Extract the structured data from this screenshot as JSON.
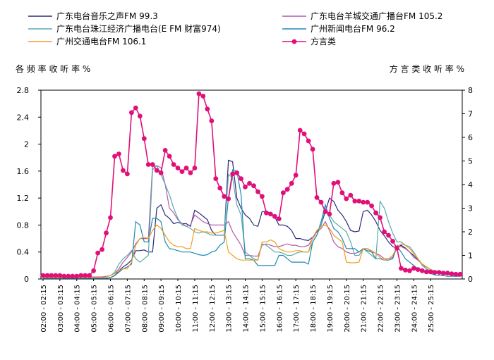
{
  "chart_data": {
    "type": "line",
    "y_left_label": "各 频 率 收 听 率 %",
    "y_right_label": "方 言 类 收 听 率 %",
    "y_left_ticks": [
      "0",
      "0.4",
      "0.8",
      "1.2",
      "1.6",
      "2",
      "2.4",
      "2.8"
    ],
    "y_right_ticks": [
      "0",
      "1",
      "2",
      "3",
      "4",
      "5",
      "6",
      "7",
      "8"
    ],
    "ylim_left": [
      0,
      2.8
    ],
    "ylim_right": [
      0,
      8
    ],
    "x_labels": [
      "02:00 - 02:15",
      "03:00 - 03:15",
      "04:00 - 04:15",
      "05:00 - 05:15",
      "06:00 - 06:15",
      "07:00 - 07:15",
      "08:00 - 08:15",
      "09:00 - 09:15",
      "10:00 - 10:15",
      "11:00 - 11:15",
      "12:00 - 12:15",
      "13:00 - 13:15",
      "14:00 - 14:15",
      "15:00 - 15:15",
      "16:00 - 16:15",
      "17:00 - 17:15",
      "18:00 - 18:15",
      "19:00 - 19:15",
      "20:00 - 20:15",
      "21:00 - 21:15",
      "22:00 - 22:15",
      "23:00 - 23:15",
      "24:00 - 24:15",
      "25:00 - 25:15"
    ],
    "grid": false,
    "legend_position": "top",
    "series": [
      {
        "name": "广东电台音乐之声FM 99.3",
        "color": "#2a2a7a",
        "axis": "left",
        "values": [
          0.01,
          0.01,
          0.01,
          0.01,
          0.01,
          0.01,
          0.01,
          0.01,
          0.01,
          0.01,
          0.01,
          0.01,
          0.01,
          0.01,
          0.01,
          0.01,
          0.02,
          0.05,
          0.12,
          0.18,
          0.22,
          0.28,
          0.42,
          0.42,
          0.43,
          0.4,
          0.4,
          1.05,
          1.1,
          0.95,
          0.9,
          0.82,
          0.84,
          0.82,
          0.82,
          0.78,
          1.02,
          0.98,
          0.93,
          0.88,
          0.72,
          0.65,
          0.65,
          0.65,
          1.76,
          1.74,
          1.2,
          1.05,
          0.95,
          0.9,
          0.8,
          0.78,
          1.0,
          1.0,
          0.98,
          0.92,
          0.8,
          0.8,
          0.78,
          0.72,
          0.6,
          0.6,
          0.58,
          0.57,
          0.62,
          0.7,
          0.8,
          1.0,
          1.2,
          1.15,
          1.02,
          0.95,
          0.85,
          0.72,
          0.7,
          0.71,
          1.0,
          1.02,
          0.95,
          0.85,
          0.72,
          0.64,
          0.55,
          0.48,
          0.46,
          0.5,
          0.46,
          0.4,
          0.35,
          0.28,
          0.22,
          0.18,
          0.14,
          0.1,
          0.08,
          0.07,
          0.07,
          0.06,
          0.05,
          0.05
        ]
      },
      {
        "name": "广东电台羊城交通广播台FM 105.2",
        "color": "#b05aab",
        "axis": "left",
        "values": [
          0.03,
          0.03,
          0.03,
          0.03,
          0.03,
          0.03,
          0.03,
          0.03,
          0.03,
          0.03,
          0.03,
          0.03,
          0.03,
          0.03,
          0.03,
          0.04,
          0.05,
          0.08,
          0.15,
          0.25,
          0.32,
          0.4,
          0.52,
          0.6,
          0.6,
          0.6,
          1.68,
          1.68,
          1.65,
          1.4,
          1.05,
          0.98,
          0.88,
          0.82,
          0.78,
          0.8,
          0.95,
          0.9,
          0.85,
          0.82,
          0.8,
          0.8,
          0.8,
          0.8,
          0.85,
          0.7,
          0.6,
          0.5,
          0.35,
          0.35,
          0.34,
          0.34,
          0.5,
          0.52,
          0.5,
          0.48,
          0.48,
          0.5,
          0.52,
          0.5,
          0.5,
          0.48,
          0.48,
          0.5,
          0.6,
          0.7,
          0.75,
          0.85,
          0.72,
          0.55,
          0.48,
          0.45,
          0.4,
          0.38,
          0.38,
          0.4,
          0.45,
          0.45,
          0.4,
          0.38,
          0.35,
          0.3,
          0.3,
          0.32,
          0.5,
          0.48,
          0.45,
          0.4,
          0.32,
          0.28,
          0.22,
          0.15,
          0.12,
          0.1,
          0.08,
          0.07,
          0.07,
          0.06,
          0.05,
          0.05
        ]
      },
      {
        "name": "广东电台珠江经济广播电台(E FM 财富974)",
        "color": "#5aaaaa",
        "axis": "left",
        "values": [
          0.02,
          0.02,
          0.02,
          0.02,
          0.02,
          0.02,
          0.02,
          0.02,
          0.02,
          0.02,
          0.02,
          0.02,
          0.02,
          0.02,
          0.02,
          0.03,
          0.05,
          0.1,
          0.22,
          0.3,
          0.35,
          0.42,
          0.3,
          0.25,
          0.3,
          0.35,
          1.62,
          1.68,
          1.55,
          1.4,
          1.25,
          1.05,
          0.9,
          0.8,
          0.78,
          0.75,
          0.7,
          0.68,
          0.7,
          0.68,
          0.65,
          0.65,
          0.65,
          0.65,
          1.55,
          1.5,
          1.1,
          0.95,
          0.4,
          0.35,
          0.3,
          0.28,
          0.52,
          0.5,
          0.45,
          0.4,
          0.4,
          0.38,
          0.35,
          0.35,
          0.38,
          0.4,
          0.4,
          0.4,
          0.55,
          0.65,
          0.8,
          1.05,
          0.95,
          0.85,
          0.8,
          0.75,
          0.7,
          0.55,
          0.35,
          0.35,
          0.45,
          0.4,
          0.35,
          0.3,
          1.15,
          1.05,
          0.85,
          0.68,
          0.55,
          0.55,
          0.5,
          0.48,
          0.4,
          0.3,
          0.2,
          0.15,
          0.12,
          0.1,
          0.08,
          0.07,
          0.07,
          0.06,
          0.05,
          0.05
        ]
      },
      {
        "name": "广州新闻电台FM 96.2",
        "color": "#1f8ab0",
        "axis": "left",
        "values": [
          0.01,
          0.01,
          0.01,
          0.01,
          0.01,
          0.01,
          0.01,
          0.01,
          0.01,
          0.01,
          0.01,
          0.01,
          0.01,
          0.01,
          0.01,
          0.01,
          0.02,
          0.05,
          0.1,
          0.15,
          0.18,
          0.22,
          0.85,
          0.8,
          0.55,
          0.55,
          0.9,
          0.9,
          0.85,
          0.55,
          0.45,
          0.44,
          0.42,
          0.4,
          0.4,
          0.4,
          0.38,
          0.36,
          0.35,
          0.36,
          0.4,
          0.42,
          0.5,
          0.55,
          1.2,
          1.62,
          1.6,
          1.25,
          0.3,
          0.3,
          0.28,
          0.2,
          0.2,
          0.2,
          0.2,
          0.2,
          0.35,
          0.35,
          0.3,
          0.25,
          0.25,
          0.25,
          0.25,
          0.22,
          0.55,
          0.65,
          0.85,
          1.1,
          0.9,
          0.75,
          0.7,
          0.6,
          0.45,
          0.45,
          0.45,
          0.4,
          0.45,
          0.42,
          0.4,
          0.3,
          0.3,
          0.28,
          0.28,
          0.3,
          0.48,
          0.4,
          0.3,
          0.25,
          0.2,
          0.15,
          0.12,
          0.1,
          0.08,
          0.06,
          0.05,
          0.05,
          0.04,
          0.04,
          0.04,
          0.04
        ]
      },
      {
        "name": "广州交通电台FM 106.1",
        "color": "#f0a020",
        "axis": "left",
        "values": [
          0.02,
          0.02,
          0.02,
          0.02,
          0.02,
          0.02,
          0.02,
          0.02,
          0.02,
          0.02,
          0.02,
          0.02,
          0.02,
          0.02,
          0.02,
          0.03,
          0.05,
          0.08,
          0.12,
          0.15,
          0.15,
          0.25,
          0.5,
          0.6,
          0.62,
          0.6,
          0.72,
          0.8,
          0.75,
          0.65,
          0.55,
          0.5,
          0.48,
          0.48,
          0.45,
          0.45,
          0.75,
          0.72,
          0.7,
          0.7,
          0.68,
          0.68,
          0.7,
          0.72,
          0.4,
          0.35,
          0.3,
          0.28,
          0.28,
          0.28,
          0.28,
          0.28,
          0.55,
          0.55,
          0.58,
          0.55,
          0.45,
          0.42,
          0.4,
          0.4,
          0.42,
          0.42,
          0.4,
          0.4,
          0.62,
          0.72,
          0.78,
          0.8,
          0.75,
          0.65,
          0.6,
          0.55,
          0.25,
          0.24,
          0.24,
          0.25,
          0.45,
          0.45,
          0.42,
          0.38,
          0.32,
          0.28,
          0.3,
          0.35,
          0.48,
          0.52,
          0.5,
          0.45,
          0.38,
          0.3,
          0.22,
          0.18,
          0.14,
          0.12,
          0.1,
          0.09,
          0.08,
          0.07,
          0.06,
          0.06
        ]
      },
      {
        "name": "方言类",
        "color": "#e0107a",
        "axis": "right",
        "markers": true,
        "values": [
          0.15,
          0.15,
          0.15,
          0.15,
          0.15,
          0.12,
          0.12,
          0.12,
          0.12,
          0.15,
          0.15,
          0.15,
          0.35,
          1.1,
          1.25,
          1.95,
          2.6,
          5.2,
          5.3,
          4.6,
          4.45,
          7.05,
          7.25,
          6.9,
          5.95,
          4.85,
          4.85,
          4.6,
          4.5,
          5.45,
          5.2,
          4.85,
          4.7,
          4.55,
          4.7,
          4.5,
          4.7,
          7.85,
          7.75,
          7.2,
          6.7,
          4.25,
          3.85,
          3.5,
          3.4,
          4.45,
          4.5,
          4.25,
          3.9,
          4.05,
          3.95,
          3.7,
          3.5,
          2.8,
          2.75,
          2.65,
          2.55,
          3.65,
          3.8,
          4.05,
          4.4,
          6.3,
          6.15,
          5.85,
          5.5,
          3.45,
          3.25,
          2.85,
          2.75,
          4.05,
          4.1,
          3.65,
          3.4,
          3.55,
          3.3,
          3.3,
          3.25,
          3.25,
          3.1,
          2.8,
          2.6,
          2.0,
          1.85,
          1.6,
          1.3,
          0.45,
          0.38,
          0.35,
          0.45,
          0.4,
          0.35,
          0.3,
          0.3,
          0.28,
          0.28,
          0.25,
          0.25,
          0.22,
          0.2,
          0.2
        ]
      }
    ]
  }
}
